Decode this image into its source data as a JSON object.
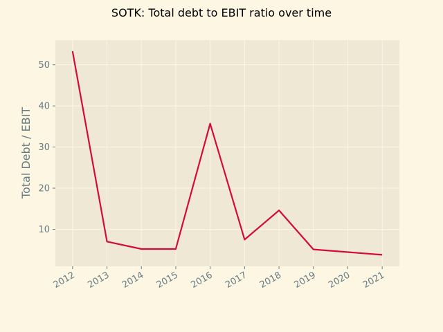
{
  "chart_data": {
    "type": "line",
    "title": "SOTK: Total debt to EBIT ratio over time",
    "xlabel": "",
    "ylabel": "Total Debt / EBIT",
    "x": [
      2012,
      2013,
      2014,
      2015,
      2016,
      2017,
      2018,
      2019,
      2020,
      2021
    ],
    "x_ticks": [
      "2012",
      "2013",
      "2014",
      "2015",
      "2016",
      "2017",
      "2018",
      "2019",
      "2020",
      "2021"
    ],
    "y_ticks": [
      10,
      20,
      30,
      40,
      50
    ],
    "xlim": [
      2011.5,
      2021.5
    ],
    "ylim": [
      1.0,
      56.0
    ],
    "grid": true,
    "series": [
      {
        "values": [
          53.3,
          7.0,
          5.2,
          5.2,
          35.7,
          7.5,
          14.6,
          5.1,
          null,
          3.8
        ]
      }
    ],
    "colors": {
      "background": "#fdf6e3",
      "plot_background": "#eee8d5",
      "grid": "#fdf6e3",
      "line": "#d30b3a",
      "tick_text": "#657b83"
    }
  }
}
